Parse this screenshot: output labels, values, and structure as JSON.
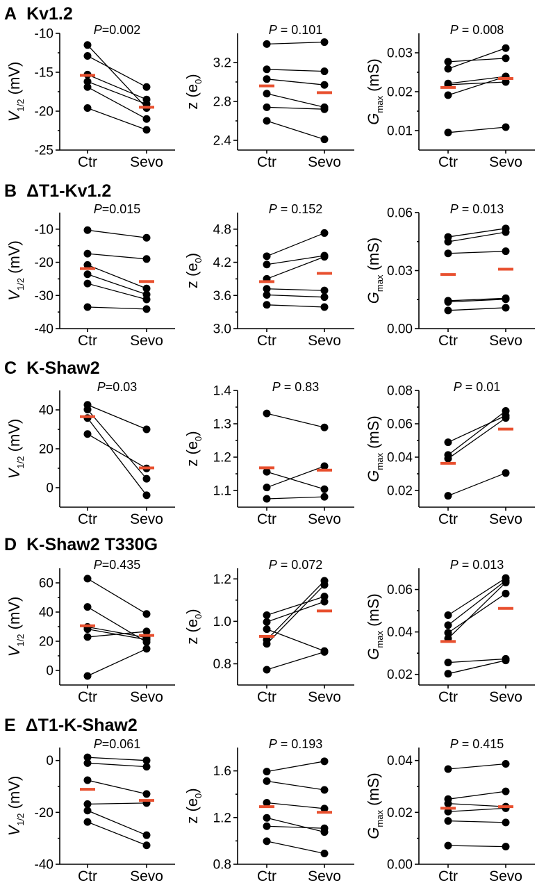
{
  "figure": {
    "panels": [
      {
        "letter": "A",
        "title": "Kv1.2"
      },
      {
        "letter": "B",
        "title": "ΔT1-Kv1.2"
      },
      {
        "letter": "C",
        "title": "K-Shaw2"
      },
      {
        "letter": "D",
        "title": "K-Shaw2 T330G"
      },
      {
        "letter": "E",
        "title": "ΔT1-K-Shaw2"
      }
    ],
    "mean_color": "#e8502f",
    "point_color": "#000000"
  },
  "chart_data": [
    {
      "type": "scatter",
      "panel": "A",
      "measure": "V1/2",
      "ylabel": "V",
      "ylabel_sub": "1/2",
      "ylabel_unit": " (mV)",
      "categories": [
        "Ctr",
        "Sevo"
      ],
      "p_label": "P",
      "p_value": "=0.002",
      "yticks": [
        -10,
        -15,
        -20,
        -25
      ],
      "ytick_labels": [
        "-10",
        "-15",
        "-20",
        "-25"
      ],
      "ylim": [
        -25,
        -10
      ],
      "ytop": -10,
      "ctr": [
        -11.5,
        -12.9,
        -15.3,
        -16.2,
        -16.9,
        -19.6
      ],
      "sevo": [
        -19.6,
        -16.9,
        -18.5,
        -19.1,
        -21.0,
        -22.4
      ],
      "mean": [
        -15.4,
        -19.5
      ]
    },
    {
      "type": "scatter",
      "panel": "A",
      "measure": "z",
      "ylabel": "z (e",
      "ylabel_sub": "0",
      "ylabel_unit": ")",
      "categories": [
        "Ctr",
        "Sevo"
      ],
      "p_label": "P",
      "p_value": " = 0.101",
      "yticks": [
        2.4,
        2.8,
        3.2
      ],
      "ytick_labels": [
        "2.4",
        "2.8",
        "3.2"
      ],
      "ylim": [
        2.3,
        3.5
      ],
      "ytop": 3.5,
      "ctr": [
        3.39,
        3.13,
        3.03,
        2.88,
        2.74,
        2.6
      ],
      "sevo": [
        3.41,
        3.11,
        2.97,
        2.74,
        2.72,
        2.41
      ],
      "mean": [
        2.96,
        2.89
      ]
    },
    {
      "type": "scatter",
      "panel": "A",
      "measure": "Gmax",
      "ylabel": "G",
      "ylabel_sub": "max",
      "ylabel_unit": " (mS)",
      "categories": [
        "Ctr",
        "Sevo"
      ],
      "p_label": "P",
      "p_value": " = 0.008",
      "yticks": [
        0.01,
        0.02,
        0.03
      ],
      "ytick_labels": [
        "0.01",
        "0.02",
        "0.03"
      ],
      "ylim": [
        0.005,
        0.035
      ],
      "ytop": 0.035,
      "ctr": [
        0.0277,
        0.0259,
        0.0221,
        0.0218,
        0.0191,
        0.0095
      ],
      "sevo": [
        0.0286,
        0.0312,
        0.0239,
        0.0225,
        0.0239,
        0.0109
      ],
      "mean": [
        0.0211,
        0.0234
      ]
    },
    {
      "type": "scatter",
      "panel": "B",
      "measure": "V1/2",
      "ylabel": "V",
      "ylabel_sub": "1/2",
      "ylabel_unit": " (mV)",
      "categories": [
        "Ctr",
        "Sevo"
      ],
      "p_label": "P",
      "p_value": "=0.015",
      "yticks": [
        -10,
        -20,
        -30,
        -40
      ],
      "ytick_labels": [
        "-10",
        "-20",
        "-30",
        "-40"
      ],
      "ylim": [
        -40,
        -5
      ],
      "ytop": -5,
      "ctr": [
        -10.3,
        -17.4,
        -20.8,
        -23.6,
        -26.4,
        -33.5
      ],
      "sevo": [
        -12.6,
        -19.0,
        -27.9,
        -29.7,
        -31.2,
        -34.1
      ],
      "mean": [
        -21.9,
        -25.8
      ]
    },
    {
      "type": "scatter",
      "panel": "B",
      "measure": "z",
      "ylabel": "z (e",
      "ylabel_sub": "0",
      "ylabel_unit": ")",
      "categories": [
        "Ctr",
        "Sevo"
      ],
      "p_label": "P",
      "p_value": " = 0.152",
      "yticks": [
        3.0,
        3.6,
        4.2,
        4.8
      ],
      "ytick_labels": [
        "3.0",
        "3.6",
        "4.2",
        "4.8"
      ],
      "ylim": [
        3.0,
        5.1
      ],
      "ytop": 5.1,
      "ctr": [
        4.31,
        4.16,
        3.9,
        3.72,
        3.61,
        3.43
      ],
      "sevo": [
        4.73,
        4.32,
        4.3,
        3.69,
        3.57,
        3.39
      ],
      "mean": [
        3.85,
        4.0
      ]
    },
    {
      "type": "scatter",
      "panel": "B",
      "measure": "Gmax",
      "ylabel": "G",
      "ylabel_sub": "max",
      "ylabel_unit": " (mS)",
      "categories": [
        "Ctr",
        "Sevo"
      ],
      "p_label": "P",
      "p_value": " = 0.013",
      "yticks": [
        0.0,
        0.03,
        0.06
      ],
      "ytick_labels": [
        "0.00",
        "0.03",
        "0.06"
      ],
      "ylim": [
        0.0,
        0.06
      ],
      "ytop": 0.06,
      "ctr": [
        0.0474,
        0.0449,
        0.0389,
        0.0144,
        0.0138,
        0.0094
      ],
      "sevo": [
        0.0518,
        0.0499,
        0.04,
        0.0157,
        0.0152,
        0.0108
      ],
      "mean": [
        0.028,
        0.0307
      ]
    },
    {
      "type": "scatter",
      "panel": "C",
      "measure": "V1/2",
      "ylabel": "V",
      "ylabel_sub": "1/2",
      "ylabel_unit": " (mV)",
      "categories": [
        "Ctr",
        "Sevo"
      ],
      "p_label": "P",
      "p_value": "=0.03",
      "yticks": [
        0,
        20,
        40
      ],
      "ytick_labels": [
        "0",
        "20",
        "40"
      ],
      "ylim": [
        -10,
        50
      ],
      "ytop": 50,
      "ctr": [
        42.6,
        40.2,
        35.8,
        27.6
      ],
      "sevo": [
        30.0,
        4.6,
        -3.9,
        9.9
      ],
      "mean": [
        36.5,
        10.2
      ]
    },
    {
      "type": "scatter",
      "panel": "C",
      "measure": "z",
      "ylabel": "z (e",
      "ylabel_sub": "0",
      "ylabel_unit": ")",
      "categories": [
        "Ctr",
        "Sevo"
      ],
      "p_label": "P",
      "p_value": " = 0.83",
      "yticks": [
        1.1,
        1.2,
        1.3,
        1.4
      ],
      "ytick_labels": [
        "1.1",
        "1.2",
        "1.3",
        "1.4"
      ],
      "ylim": [
        1.05,
        1.4
      ],
      "ytop": 1.4,
      "ctr": [
        1.331,
        1.156,
        1.109,
        1.075
      ],
      "sevo": [
        1.289,
        1.104,
        1.173,
        1.081
      ],
      "mean": [
        1.168,
        1.161
      ]
    },
    {
      "type": "scatter",
      "panel": "C",
      "measure": "Gmax",
      "ylabel": "G",
      "ylabel_sub": "max",
      "ylabel_unit": " (mS)",
      "categories": [
        "Ctr",
        "Sevo"
      ],
      "p_label": "P",
      "p_value": " = 0.01",
      "yticks": [
        0.02,
        0.04,
        0.06,
        0.08
      ],
      "ytick_labels": [
        "0.02",
        "0.04",
        "0.06",
        "0.08"
      ],
      "ylim": [
        0.01,
        0.08
      ],
      "ytop": 0.08,
      "ctr": [
        0.0489,
        0.0413,
        0.0391,
        0.0168
      ],
      "sevo": [
        0.0649,
        0.0677,
        0.0635,
        0.0305
      ],
      "mean": [
        0.0363,
        0.0568
      ]
    },
    {
      "type": "scatter",
      "panel": "D",
      "measure": "V1/2",
      "ylabel": "V",
      "ylabel_sub": "1/2",
      "ylabel_unit": " (mV)",
      "categories": [
        "Ctr",
        "Sevo"
      ],
      "p_label": "P",
      "p_value": "=0.435",
      "yticks": [
        0,
        20,
        40,
        60
      ],
      "ytick_labels": [
        "0",
        "20",
        "40",
        "60"
      ],
      "ylim": [
        -10,
        70
      ],
      "ytop": 70,
      "ctr": [
        62.9,
        43.5,
        29.8,
        28.3,
        22.9,
        -3.8
      ],
      "sevo": [
        38.7,
        19.4,
        22.5,
        21.1,
        26.7,
        14.8
      ],
      "mean": [
        30.6,
        24.0
      ]
    },
    {
      "type": "scatter",
      "panel": "D",
      "measure": "z",
      "ylabel": "z (e",
      "ylabel_sub": "0",
      "ylabel_unit": ")",
      "categories": [
        "Ctr",
        "Sevo"
      ],
      "p_label": "P",
      "p_value": " = 0.072",
      "yticks": [
        0.8,
        1.0,
        1.2
      ],
      "ytick_labels": [
        "0.8",
        "1.0",
        "1.2"
      ],
      "ylim": [
        0.7,
        1.25
      ],
      "ytop": 1.25,
      "ctr": [
        1.029,
        0.997,
        0.963,
        0.913,
        0.894,
        0.772
      ],
      "sevo": [
        1.117,
        1.093,
        0.86,
        1.191,
        1.172,
        0.856
      ],
      "mean": [
        0.929,
        1.049
      ]
    },
    {
      "type": "scatter",
      "panel": "D",
      "measure": "Gmax",
      "ylabel": "G",
      "ylabel_sub": "max",
      "ylabel_unit": " (mS)",
      "categories": [
        "Ctr",
        "Sevo"
      ],
      "p_label": "P",
      "p_value": " = 0.013",
      "yticks": [
        0.02,
        0.04,
        0.06
      ],
      "ytick_labels": [
        "0.02",
        "0.04",
        "0.06"
      ],
      "ylim": [
        0.015,
        0.07
      ],
      "ytop": 0.07,
      "ctr": [
        0.0479,
        0.0432,
        0.0396,
        0.0369,
        0.0256,
        0.0203
      ],
      "sevo": [
        0.0654,
        0.0642,
        0.0581,
        0.0633,
        0.0273,
        0.0266
      ],
      "mean": [
        0.0355,
        0.0511
      ]
    },
    {
      "type": "scatter",
      "panel": "E",
      "measure": "V1/2",
      "ylabel": "V",
      "ylabel_sub": "1/2",
      "ylabel_unit": " (mV)",
      "categories": [
        "Ctr",
        "Sevo"
      ],
      "p_label": "P",
      "p_value": "=0.061",
      "yticks": [
        0,
        -20,
        -40
      ],
      "ytick_labels": [
        "0",
        "-20",
        "-40"
      ],
      "ylim": [
        -40,
        5
      ],
      "ytop": 5,
      "ctr": [
        1.2,
        -1.0,
        -7.6,
        -16.8,
        -19.3,
        -23.7
      ],
      "sevo": [
        0.0,
        -2.4,
        -12.9,
        -16.4,
        -28.8,
        -32.7
      ],
      "mean": [
        -11.1,
        -15.4
      ]
    },
    {
      "type": "scatter",
      "panel": "E",
      "measure": "z",
      "ylabel": "z (e",
      "ylabel_sub": "0",
      "ylabel_unit": ")",
      "categories": [
        "Ctr",
        "Sevo"
      ],
      "p_label": "P",
      "p_value": " = 0.193",
      "yticks": [
        0.8,
        1.2,
        1.6
      ],
      "ytick_labels": [
        "0.8",
        "1.2",
        "1.6"
      ],
      "ylim": [
        0.8,
        1.8
      ],
      "ytop": 1.8,
      "ctr": [
        1.594,
        1.512,
        1.327,
        1.197,
        1.126,
        0.997
      ],
      "sevo": [
        1.682,
        1.437,
        1.277,
        1.076,
        1.108,
        0.892
      ],
      "mean": [
        1.293,
        1.245
      ]
    },
    {
      "type": "scatter",
      "panel": "E",
      "measure": "Gmax",
      "ylabel": "G",
      "ylabel_sub": "max",
      "ylabel_unit": " (mS)",
      "categories": [
        "Ctr",
        "Sevo"
      ],
      "p_label": "P",
      "p_value": " = 0.415",
      "yticks": [
        0.0,
        0.02,
        0.04
      ],
      "ytick_labels": [
        "0.00",
        "0.02",
        "0.04"
      ],
      "ylim": [
        0.0,
        0.045
      ],
      "ytop": 0.045,
      "ctr": [
        0.0367,
        0.0251,
        0.0234,
        0.0203,
        0.0167,
        0.0072
      ],
      "sevo": [
        0.0387,
        0.0281,
        0.0222,
        0.0216,
        0.0161,
        0.0068
      ],
      "mean": [
        0.0216,
        0.0222
      ]
    }
  ]
}
